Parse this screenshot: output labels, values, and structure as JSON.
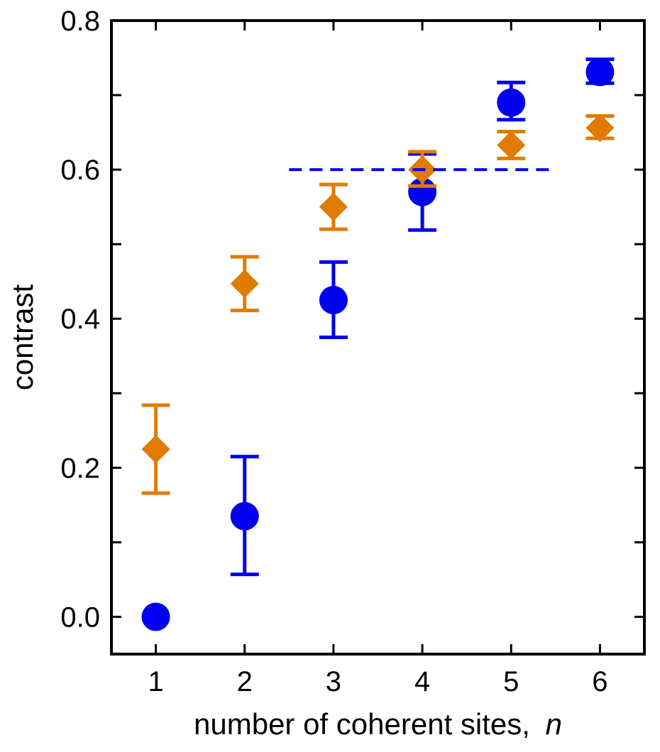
{
  "chart_data": {
    "type": "scatter",
    "xlabel": "number of coherent sites,",
    "xlabel_var": "n",
    "ylabel": "contrast",
    "xlim": [
      0.5,
      6.5
    ],
    "ylim": [
      -0.05,
      0.8
    ],
    "x_ticks": [
      1,
      2,
      3,
      4,
      5,
      6
    ],
    "x_tick_labels": [
      "1",
      "2",
      "3",
      "4",
      "5",
      "6"
    ],
    "y_ticks": [
      0.0,
      0.1,
      0.2,
      0.3,
      0.4,
      0.5,
      0.6,
      0.7,
      0.8
    ],
    "y_tick_labels": [
      {
        "value": 0.0,
        "label": "0.0"
      },
      {
        "value": 0.2,
        "label": "0.2"
      },
      {
        "value": 0.4,
        "label": "0.4"
      },
      {
        "value": 0.6,
        "label": "0.6"
      },
      {
        "value": 0.8,
        "label": "0.8"
      }
    ],
    "grid": false,
    "series": [
      {
        "marker": "circle",
        "color": "#0000ee",
        "points": [
          {
            "x": 1,
            "y": 0.0,
            "err_low": 0.0,
            "err_high": 0.0
          },
          {
            "x": 2,
            "y": 0.135,
            "err_low": 0.057,
            "err_high": 0.215
          },
          {
            "x": 3,
            "y": 0.425,
            "err_low": 0.375,
            "err_high": 0.476
          },
          {
            "x": 4,
            "y": 0.57,
            "err_low": 0.519,
            "err_high": 0.621
          },
          {
            "x": 5,
            "y": 0.69,
            "err_low": 0.667,
            "err_high": 0.717
          },
          {
            "x": 6,
            "y": 0.731,
            "err_low": 0.716,
            "err_high": 0.748
          }
        ]
      },
      {
        "marker": "diamond",
        "color": "#e07b00",
        "points": [
          {
            "x": 1,
            "y": 0.225,
            "err_low": 0.166,
            "err_high": 0.284
          },
          {
            "x": 2,
            "y": 0.447,
            "err_low": 0.411,
            "err_high": 0.483
          },
          {
            "x": 3,
            "y": 0.55,
            "err_low": 0.52,
            "err_high": 0.58
          },
          {
            "x": 4,
            "y": 0.6,
            "err_low": 0.578,
            "err_high": 0.624
          },
          {
            "x": 5,
            "y": 0.633,
            "err_low": 0.615,
            "err_high": 0.651
          },
          {
            "x": 6,
            "y": 0.656,
            "err_low": 0.642,
            "err_high": 0.672
          }
        ]
      }
    ],
    "reference_line": {
      "y": 0.6,
      "x_start": 2.5,
      "x_end": 5.5,
      "style": "dashed",
      "color": "#0000ee"
    }
  }
}
